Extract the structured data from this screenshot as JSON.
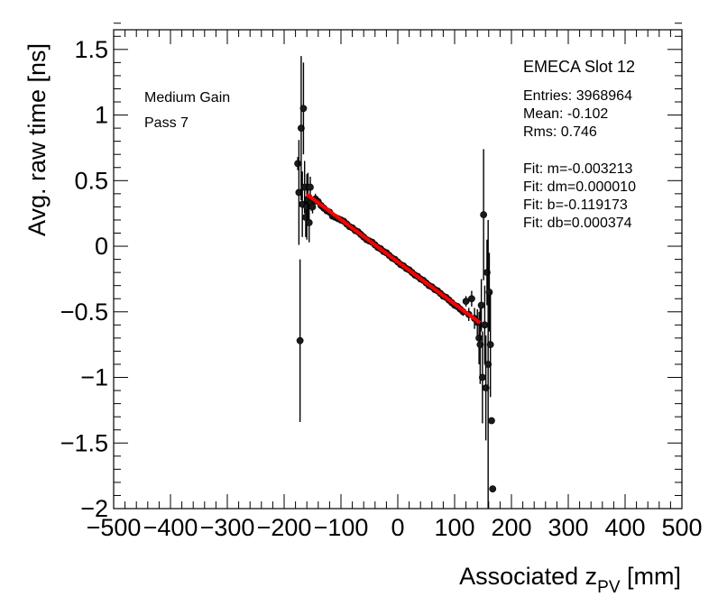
{
  "chart_data": {
    "type": "scatter",
    "xlabel_main": "Associated z",
    "xlabel_sub": "PV",
    "xlabel_unit": " [mm]",
    "ylabel": "Avg. raw time [ns]",
    "xlim": [
      -500,
      500
    ],
    "ylim": [
      -2,
      1.65
    ],
    "x_ticks": [
      -500,
      -400,
      -300,
      -200,
      -100,
      0,
      100,
      200,
      300,
      400,
      500
    ],
    "x_tick_labels": [
      "−500",
      "−400",
      "−300",
      "−200",
      "−100",
      "0",
      "100",
      "200",
      "300",
      "400",
      "500"
    ],
    "y_ticks": [
      -2,
      -1.5,
      -1,
      -0.5,
      0,
      0.5,
      1,
      1.5
    ],
    "y_tick_labels": [
      "−2",
      "−1.5",
      "−1",
      "−0.5",
      "0",
      "0.5",
      "1",
      "1.5"
    ],
    "annotations": {
      "gain": "Medium Gain",
      "pass": "Pass 7",
      "slot": "EMECA Slot 12",
      "stats": [
        "Entries: 3968964",
        "Mean: -0.102",
        "Rms: 0.746"
      ],
      "fit": [
        "Fit: m=-0.003213",
        "Fit: dm=0.000010",
        "Fit: b=-0.119173",
        "Fit: db=0.000374"
      ]
    },
    "fit_line": {
      "slope": -0.003213,
      "intercept": -0.119173,
      "x_range": [
        -160,
        145
      ]
    },
    "series": [
      {
        "name": "profile",
        "x": [
          -176,
          -174,
          -172,
          -170,
          -168,
          -166,
          -164,
          -162,
          -160,
          -158,
          -156,
          -154,
          -152,
          -150,
          -145,
          -140,
          -135,
          -130,
          -125,
          -120,
          -115,
          -110,
          -105,
          -100,
          -95,
          -90,
          -85,
          -80,
          -75,
          -70,
          -65,
          -60,
          -55,
          -50,
          -45,
          -40,
          -35,
          -30,
          -25,
          -20,
          -15,
          -10,
          -5,
          0,
          5,
          10,
          15,
          20,
          25,
          30,
          35,
          40,
          45,
          50,
          55,
          60,
          65,
          70,
          75,
          80,
          85,
          90,
          95,
          100,
          105,
          110,
          115,
          120,
          125,
          130,
          135,
          140,
          143,
          145,
          147,
          149,
          151,
          153,
          155,
          157,
          159,
          161,
          163,
          165,
          167
        ],
        "y": [
          0.63,
          0.41,
          -0.72,
          0.9,
          0.32,
          1.05,
          0.45,
          0.22,
          0.3,
          0.36,
          0.18,
          0.45,
          0.33,
          0.3,
          0.36,
          0.34,
          0.31,
          0.29,
          0.27,
          0.26,
          0.23,
          0.22,
          0.21,
          0.2,
          0.19,
          0.17,
          0.15,
          0.14,
          0.12,
          0.11,
          0.09,
          0.07,
          0.05,
          0.04,
          0.03,
          0.01,
          -0.01,
          -0.02,
          -0.04,
          -0.05,
          -0.07,
          -0.09,
          -0.1,
          -0.12,
          -0.14,
          -0.15,
          -0.17,
          -0.18,
          -0.2,
          -0.22,
          -0.23,
          -0.25,
          -0.26,
          -0.28,
          -0.3,
          -0.31,
          -0.33,
          -0.34,
          -0.36,
          -0.38,
          -0.39,
          -0.41,
          -0.43,
          -0.45,
          -0.46,
          -0.48,
          -0.5,
          -0.42,
          -0.52,
          -0.4,
          -0.55,
          -0.58,
          -0.7,
          -0.75,
          -0.45,
          -1.0,
          0.24,
          -0.6,
          -1.08,
          -0.2,
          -0.9,
          -0.35,
          -0.75,
          -1.33,
          -1.85
        ],
        "yerr": [
          0.05,
          0.4,
          0.62,
          0.55,
          0.25,
          0.35,
          0.2,
          0.15,
          0.25,
          0.2,
          0.15,
          0.08,
          0.06,
          0.05,
          0.04,
          0.03,
          0.03,
          0.02,
          0.02,
          0.02,
          0.02,
          0.02,
          0.02,
          0.02,
          0.02,
          0.02,
          0.02,
          0.02,
          0.02,
          0.02,
          0.02,
          0.02,
          0.02,
          0.02,
          0.02,
          0.02,
          0.02,
          0.02,
          0.02,
          0.02,
          0.02,
          0.02,
          0.02,
          0.02,
          0.02,
          0.02,
          0.02,
          0.02,
          0.02,
          0.02,
          0.02,
          0.02,
          0.02,
          0.02,
          0.02,
          0.02,
          0.02,
          0.02,
          0.02,
          0.02,
          0.02,
          0.02,
          0.02,
          0.02,
          0.02,
          0.03,
          0.03,
          0.04,
          0.05,
          0.06,
          0.08,
          0.1,
          0.2,
          0.3,
          0.2,
          0.35,
          0.5,
          0.3,
          0.4,
          0.25,
          1.1,
          0.3,
          0.4,
          0.02,
          0.02
        ]
      }
    ]
  }
}
